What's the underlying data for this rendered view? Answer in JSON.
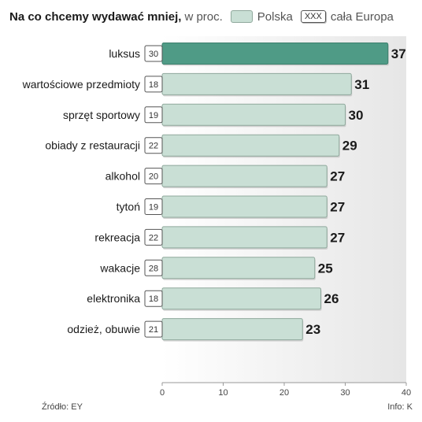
{
  "header": {
    "title": "Na co chcemy wydawać mniej,",
    "subtitle": "w proc.",
    "legend_poland": "Polska",
    "legend_europe_box": "XXX",
    "legend_europe": "cała Europa"
  },
  "footer": {
    "source": "Źródło: EY",
    "credit": "Info: K"
  },
  "colors": {
    "bar": "#c9dfd5",
    "bar_border": "#8fa89c",
    "highlight": "#4f9b86",
    "plot_bg": "#ececec"
  },
  "chart_data": {
    "type": "bar",
    "orientation": "horizontal",
    "categories": [
      "luksus",
      "wartościowe przedmioty",
      "sprzęt sportowy",
      "obiady z restauracji",
      "alkohol",
      "tytoń",
      "rekreacja",
      "wakacje",
      "elektronika",
      "odzież, obuwie"
    ],
    "series": [
      {
        "name": "Polska",
        "values": [
          37,
          31,
          30,
          29,
          27,
          27,
          27,
          25,
          26,
          23
        ]
      },
      {
        "name": "cała Europa",
        "values": [
          30,
          18,
          19,
          22,
          20,
          19,
          22,
          28,
          18,
          21
        ]
      }
    ],
    "highlight_index": 0,
    "xlim": [
      0,
      40
    ],
    "xticks": [
      0,
      10,
      20,
      30,
      40
    ],
    "grid": false
  }
}
